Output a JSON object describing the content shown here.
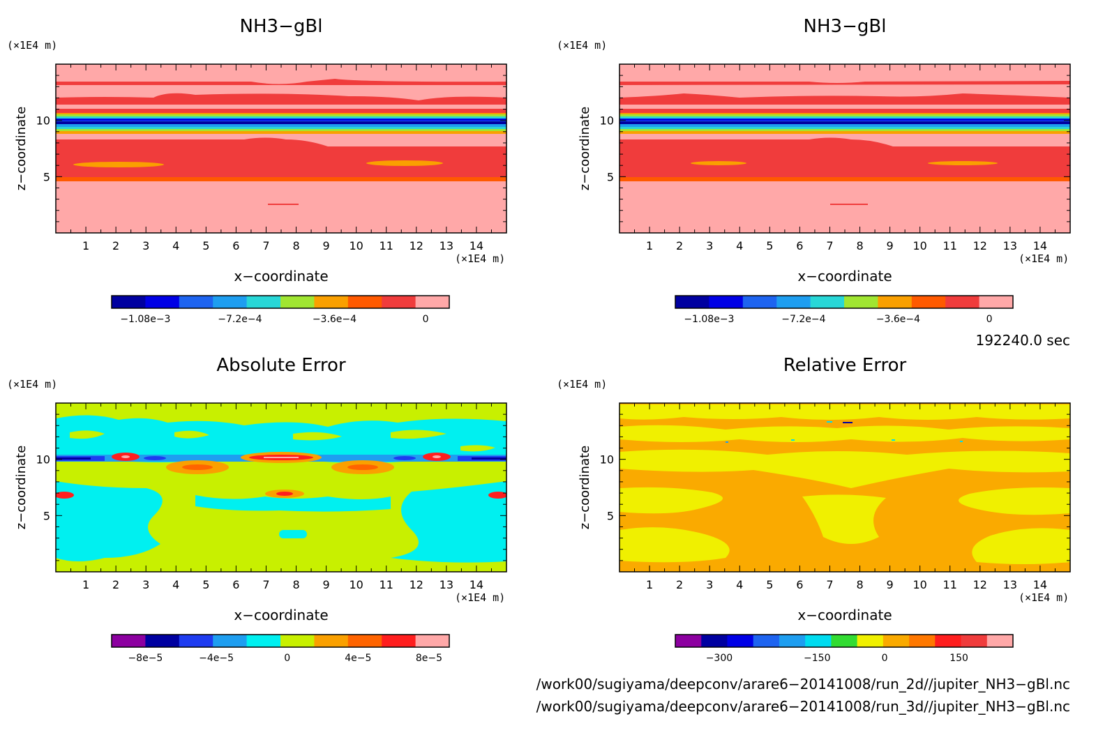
{
  "panels": [
    {
      "title": "NH3−gBl",
      "unit_x": "(×1E4 m)",
      "unit_z": "(×1E4 m)",
      "xlabel": "x−coordinate",
      "ylabel": "z−coordinate",
      "xticks": [
        1,
        2,
        3,
        4,
        5,
        6,
        7,
        8,
        9,
        10,
        11,
        12,
        13,
        14
      ],
      "yticks": [
        5,
        10
      ],
      "xlim": [
        0,
        15
      ],
      "zlim": [
        0,
        15
      ],
      "colorbar": {
        "colors": [
          "#0000a0",
          "#0000e6",
          "#1e64f0",
          "#1e9ef0",
          "#28d7d7",
          "#a0e632",
          "#faa000",
          "#ff5a00",
          "#f03c3c",
          "#ffa8a8"
        ],
        "tick_labels": [
          "−1.08e−3",
          "−7.2e−4",
          "−3.6e−4",
          "0"
        ]
      }
    },
    {
      "title": "NH3−gBl",
      "unit_x": "(×1E4 m)",
      "unit_z": "(×1E4 m)",
      "xlabel": "x−coordinate",
      "ylabel": "z−coordinate",
      "xticks": [
        1,
        2,
        3,
        4,
        5,
        6,
        7,
        8,
        9,
        10,
        11,
        12,
        13,
        14
      ],
      "yticks": [
        5,
        10
      ],
      "xlim": [
        0,
        15
      ],
      "zlim": [
        0,
        15
      ],
      "colorbar": {
        "colors": [
          "#0000a0",
          "#0000e6",
          "#1e64f0",
          "#1e9ef0",
          "#28d7d7",
          "#a0e632",
          "#faa000",
          "#ff5a00",
          "#f03c3c",
          "#ffa8a8"
        ],
        "tick_labels": [
          "−1.08e−3",
          "−7.2e−4",
          "−3.6e−4",
          "0"
        ]
      }
    },
    {
      "title": "Absolute Error",
      "unit_x": "(×1E4 m)",
      "unit_z": "(×1E4 m)",
      "xlabel": "x−coordinate",
      "ylabel": "z−coordinate",
      "xticks": [
        1,
        2,
        3,
        4,
        5,
        6,
        7,
        8,
        9,
        10,
        11,
        12,
        13,
        14
      ],
      "yticks": [
        5,
        10
      ],
      "xlim": [
        0,
        15
      ],
      "zlim": [
        0,
        15
      ],
      "colorbar": {
        "colors": [
          "#8c00a0",
          "#0000a0",
          "#1e3cf0",
          "#1e9ef0",
          "#00f0f0",
          "#c8f000",
          "#faa000",
          "#ff6400",
          "#ff1e1e",
          "#ffa8a8"
        ],
        "tick_labels": [
          "−8e−5",
          "−4e−5",
          "0",
          "4e−5",
          "8e−5"
        ]
      }
    },
    {
      "title": "Relative Error",
      "unit_x": "(×1E4 m)",
      "unit_z": "(×1E4 m)",
      "xlabel": "x−coordinate",
      "ylabel": "z−coordinate",
      "xticks": [
        1,
        2,
        3,
        4,
        5,
        6,
        7,
        8,
        9,
        10,
        11,
        12,
        13,
        14
      ],
      "yticks": [
        5,
        10
      ],
      "xlim": [
        0,
        15
      ],
      "zlim": [
        0,
        15
      ],
      "colorbar": {
        "colors": [
          "#8c00a0",
          "#0000a0",
          "#0000e6",
          "#1e64f0",
          "#1e9ef0",
          "#00dcf0",
          "#32dc32",
          "#f0f000",
          "#faaa00",
          "#ff7800",
          "#ff1e1e",
          "#f03c3c",
          "#ffa8a8"
        ],
        "tick_labels": [
          "−300",
          "−150",
          "0",
          "150"
        ]
      }
    }
  ],
  "chart_data": [
    {
      "type": "heatmap",
      "title": "NH3−gBl",
      "xlabel": "x−coordinate",
      "ylabel": "z−coordinate",
      "xlim": [
        0,
        15
      ],
      "ylim": [
        0,
        15
      ],
      "colorbar_labels": [
        -0.00108,
        -0.00072,
        -0.00036,
        0
      ],
      "description_bands": [
        {
          "z": [
            0,
            5
          ],
          "value_range": [
            -6e-05,
            0
          ]
        },
        {
          "z": [
            5,
            8.3
          ],
          "value_range": [
            -0.00018,
            -6e-05
          ]
        },
        {
          "z": [
            8.3,
            10.3
          ],
          "value_range": [
            -0.0012,
            -0.0002
          ]
        },
        {
          "z": [
            10.3,
            15
          ],
          "value_range": [
            -6e-05,
            0
          ]
        }
      ]
    },
    {
      "type": "heatmap",
      "title": "NH3−gBl",
      "xlabel": "x−coordinate",
      "ylabel": "z−coordinate",
      "xlim": [
        0,
        15
      ],
      "ylim": [
        0,
        15
      ],
      "colorbar_labels": [
        -0.00108,
        -0.00072,
        -0.00036,
        0
      ]
    },
    {
      "type": "heatmap",
      "title": "Absolute Error",
      "xlabel": "x−coordinate",
      "ylabel": "z−coordinate",
      "xlim": [
        0,
        15
      ],
      "ylim": [
        0,
        15
      ],
      "colorbar_labels": [
        -8e-05,
        -4e-05,
        0,
        4e-05,
        8e-05
      ]
    },
    {
      "type": "heatmap",
      "title": "Relative Error",
      "xlabel": "x−coordinate",
      "ylabel": "z−coordinate",
      "xlim": [
        0,
        15
      ],
      "ylim": [
        0,
        15
      ],
      "colorbar_labels": [
        -300,
        -150,
        0,
        150
      ]
    }
  ],
  "time_label": "192240.0 sec",
  "files": [
    "/work00/sugiyama/deepconv/arare6−20141008/run_2d//jupiter_NH3−gBl.nc",
    "/work00/sugiyama/deepconv/arare6−20141008/run_3d//jupiter_NH3−gBl.nc"
  ]
}
